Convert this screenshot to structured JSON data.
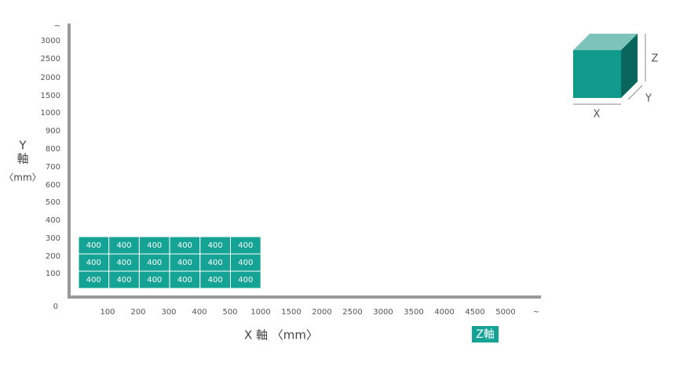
{
  "y_axis": {
    "title_letter": "Y",
    "title_word": "軸",
    "title_unit": "〈mm〉",
    "ticks": [
      "~",
      3000,
      2500,
      2000,
      1500,
      1000,
      900,
      800,
      700,
      600,
      500,
      400,
      300,
      200,
      100
    ],
    "origin": 0
  },
  "x_axis": {
    "title": "X 軸 〈mm〉",
    "ticks": [
      100,
      200,
      300,
      400,
      500,
      1000,
      1500,
      2000,
      2500,
      3000,
      3500,
      4000,
      4500,
      5000,
      "~"
    ]
  },
  "z_badge": "Z軸",
  "grid": {
    "rows": [
      [
        400,
        400,
        400,
        400,
        400,
        400
      ],
      [
        400,
        400,
        400,
        400,
        400,
        400
      ],
      [
        400,
        400,
        400,
        400,
        400,
        400
      ]
    ]
  },
  "cube": {
    "x": "X",
    "y": "Y",
    "z": "Z"
  }
}
